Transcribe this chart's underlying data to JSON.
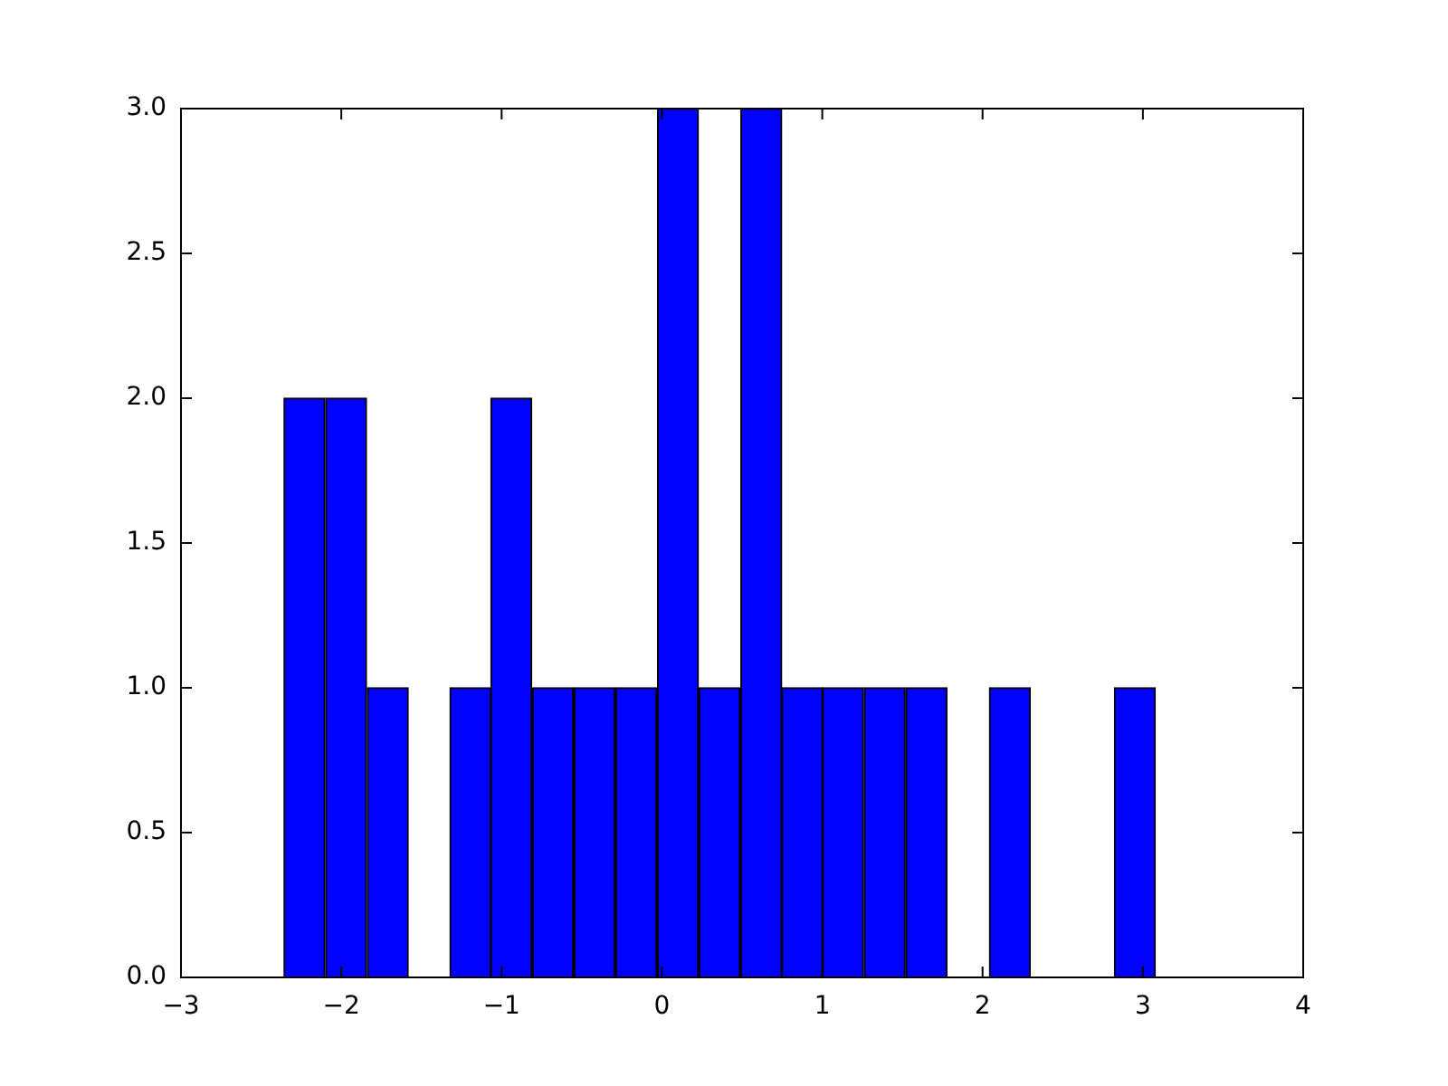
{
  "chart_data": {
    "type": "histogram",
    "bins": [
      -2.36,
      -2.1,
      -1.84,
      -1.58,
      -1.32,
      -1.07,
      -0.81,
      -0.55,
      -0.29,
      -0.03,
      0.23,
      0.49,
      0.75,
      1.0,
      1.26,
      1.52,
      1.78,
      2.04,
      2.3,
      2.56,
      2.82,
      3.08
    ],
    "values": [
      2,
      2,
      1,
      0,
      1,
      2,
      1,
      1,
      1,
      3,
      1,
      3,
      1,
      1,
      1,
      1,
      0,
      1,
      0,
      0,
      1
    ],
    "color": "#0000ff",
    "xlim": [
      -3,
      4
    ],
    "xticks": [
      {
        "value": -3,
        "label": "−3"
      },
      {
        "value": -2,
        "label": "−2"
      },
      {
        "value": -1,
        "label": "−1"
      },
      0,
      1,
      2,
      3,
      4
    ],
    "ylim": [
      0,
      3
    ],
    "yticks": [
      {
        "value": 0,
        "label": "0.0"
      },
      {
        "value": 0.5,
        "label": "0.5"
      },
      {
        "value": 1,
        "label": "1.0"
      },
      {
        "value": 1.5,
        "label": "1.5"
      },
      {
        "value": 2,
        "label": "2.0"
      },
      {
        "value": 2.5,
        "label": "2.5"
      },
      {
        "value": 3,
        "label": "3.0"
      }
    ],
    "grid": false,
    "legend": false
  }
}
